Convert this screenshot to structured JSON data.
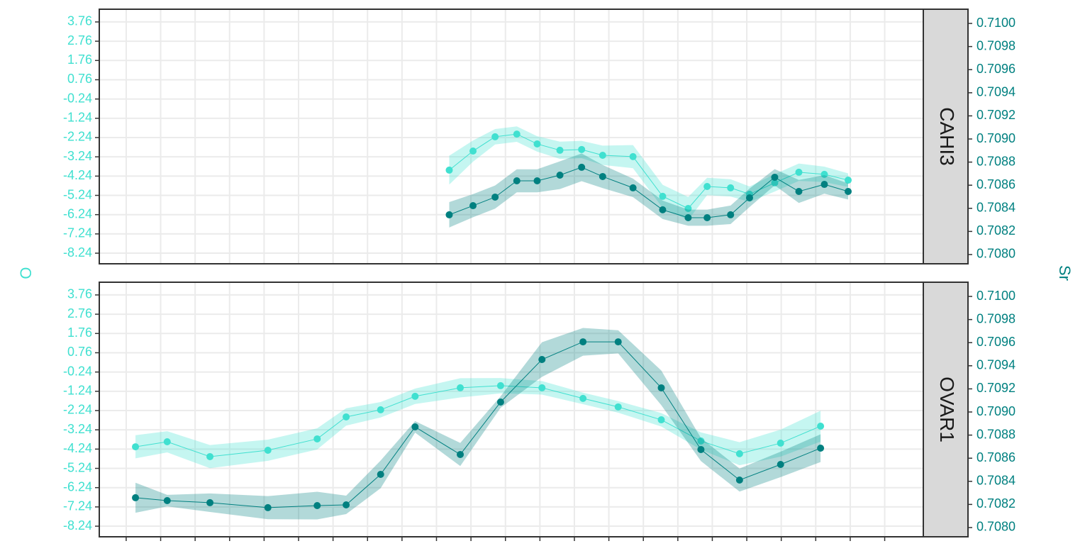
{
  "chart_data": [
    {
      "type": "line",
      "facet": "CAHI3",
      "y_label": "O",
      "y2_label": "Sr",
      "x": [
        9.37,
        10.06,
        10.7,
        11.33,
        11.92,
        12.58,
        13.21,
        13.82,
        14.7,
        15.56,
        16.3,
        16.85,
        17.53,
        18.08,
        18.81,
        19.51,
        20.25,
        20.94
      ],
      "xlim": [
        -0.78,
        23.12
      ],
      "xticks": [
        0,
        1,
        2,
        3,
        4,
        5,
        6,
        7,
        8,
        9,
        10,
        11,
        12,
        13,
        14,
        15,
        16,
        17,
        18,
        19,
        20,
        21,
        22
      ],
      "ylim": [
        -8.79,
        4.42
      ],
      "yticks": [
        3.76,
        2.76,
        1.76,
        0.76,
        -0.24,
        -1.24,
        -2.24,
        -3.24,
        -4.24,
        -5.24,
        -6.24,
        -7.24,
        -8.24
      ],
      "y2lim": [
        0.70792,
        0.710123
      ],
      "y2ticks": [
        {
          "value": 0.71,
          "label": "0.7100"
        },
        0.7098,
        0.7096,
        0.7094,
        0.7092,
        {
          "value": 0.709,
          "label": "0.7090"
        },
        0.7088,
        0.7086,
        0.7084,
        0.7082,
        {
          "value": 0.708,
          "label": "0.7080"
        }
      ],
      "grid": true,
      "series": [
        {
          "name": "O",
          "color": "#40e0d0",
          "axis": "y",
          "values": [
            -3.93,
            -2.94,
            -2.2,
            -2.06,
            -2.57,
            -2.9,
            -2.86,
            -3.16,
            -3.23,
            -5.29,
            -5.92,
            -4.78,
            -4.85,
            -5.18,
            -4.59,
            -4.04,
            -4.15,
            -4.45
          ],
          "errors": [
            0.75,
            0.55,
            0.4,
            0.4,
            0.4,
            0.45,
            0.45,
            0.5,
            0.6,
            0.6,
            0.6,
            0.45,
            0.45,
            0.4,
            0.45,
            0.45,
            0.4,
            0.35
          ]
        },
        {
          "name": "Sr",
          "color": "#008080",
          "axis": "y2",
          "values": [
            0.708344,
            0.708423,
            0.708497,
            0.708638,
            0.708638,
            0.708687,
            0.708755,
            0.708675,
            0.708577,
            0.708387,
            0.708319,
            0.708319,
            0.708344,
            0.708491,
            0.708669,
            0.708546,
            0.708607,
            0.708546
          ],
          "errors": [
            0.00011,
            0.0001,
            0.0001,
            0.0001,
            0.0001,
            0.00012,
            0.00012,
            0.0001,
            8e-05,
            8e-05,
            7e-05,
            7e-05,
            8e-05,
            8e-05,
            7e-05,
            0.0001,
            8e-05,
            7e-05
          ]
        }
      ]
    },
    {
      "type": "line",
      "facet": "OVAR1",
      "x": [
        0.27,
        1.19,
        2.43,
        4.11,
        5.54,
        6.38,
        7.38,
        8.38,
        9.69,
        10.86,
        12.06,
        13.25,
        14.27,
        15.52,
        16.67,
        17.79,
        18.98,
        20.14
      ],
      "xlim": [
        -0.78,
        23.12
      ],
      "xticks": [
        0,
        1,
        2,
        3,
        4,
        5,
        6,
        7,
        8,
        9,
        10,
        11,
        12,
        13,
        14,
        15,
        16,
        17,
        18,
        19,
        20,
        21,
        22
      ],
      "ylim": [
        -8.79,
        4.42
      ],
      "yticks": [
        3.76,
        2.76,
        1.76,
        0.76,
        -0.24,
        -1.24,
        -2.24,
        -3.24,
        -4.24,
        -5.24,
        -6.24,
        -7.24,
        -8.24
      ],
      "y2lim": [
        0.70792,
        0.710123
      ],
      "y2ticks": [
        {
          "value": 0.71,
          "label": "0.7100"
        },
        0.7098,
        0.7096,
        0.7094,
        0.7092,
        {
          "value": 0.709,
          "label": "0.7090"
        },
        0.7088,
        0.7086,
        0.7084,
        0.7082,
        {
          "value": 0.708,
          "label": "0.7080"
        }
      ],
      "grid": true,
      "series": [
        {
          "name": "O",
          "color": "#40e0d0",
          "axis": "y",
          "values": [
            -4.12,
            -3.86,
            -4.63,
            -4.3,
            -3.71,
            -2.57,
            -2.2,
            -1.5,
            -1.06,
            -0.95,
            -1.06,
            -1.61,
            -2.05,
            -2.72,
            -3.82,
            -4.48,
            -3.93,
            -3.05
          ],
          "errors": [
            0.6,
            0.55,
            0.6,
            0.55,
            0.55,
            0.45,
            0.4,
            0.4,
            0.5,
            0.4,
            0.35,
            0.3,
            0.3,
            0.35,
            0.45,
            0.6,
            0.7,
            0.8
          ]
        },
        {
          "name": "Sr",
          "color": "#008080",
          "axis": "y2",
          "values": [
            0.708258,
            0.708233,
            0.708215,
            0.708172,
            0.70819,
            0.708196,
            0.70846,
            0.708871,
            0.708632,
            0.709086,
            0.709454,
            0.709607,
            0.709607,
            0.709209,
            0.708675,
            0.708411,
            0.708546,
            0.708687
          ],
          "errors": [
            0.00013,
            5e-05,
            8e-05,
            0.0001,
            0.00012,
            8e-05,
            0.00012,
            5e-05,
            0.0001,
            5e-05,
            0.00015,
            0.00012,
            0.0001,
            0.00015,
            0.0001,
            0.0001,
            0.00011,
            0.00012
          ]
        }
      ]
    }
  ]
}
